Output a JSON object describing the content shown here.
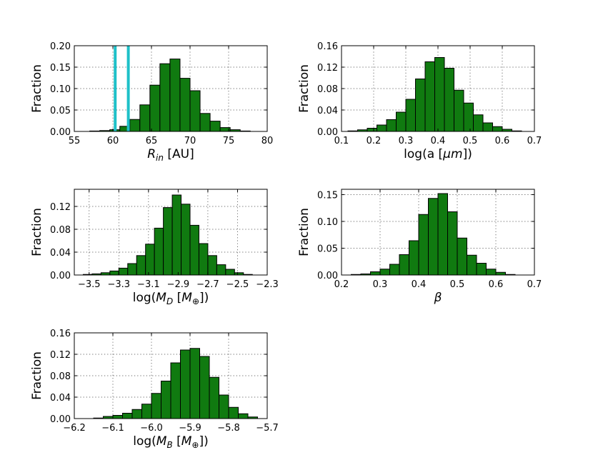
{
  "chart_data": [
    {
      "id": "rin",
      "type": "bar",
      "ylabel": "Fraction",
      "xlabel_parts": [
        {
          "t": "R",
          "it": true
        },
        {
          "t": "in",
          "it": true,
          "sub": true
        },
        {
          "t": " [AU]"
        }
      ],
      "xlim": [
        55,
        80
      ],
      "ylim": [
        0,
        0.2
      ],
      "xticks": [
        55,
        60,
        65,
        70,
        75,
        80
      ],
      "xtick_labels": [
        "55",
        "60",
        "65",
        "70",
        "75",
        "80"
      ],
      "yticks": [
        0,
        0.05,
        0.1,
        0.15,
        0.2
      ],
      "ytick_labels": [
        "0.00",
        "0.05",
        "0.10",
        "0.15",
        "0.20"
      ],
      "bin_edges": [
        57,
        58.3,
        59.6,
        60.9,
        62.2,
        63.5,
        64.8,
        66.1,
        67.4,
        68.7,
        70.0,
        71.3,
        72.6,
        73.9,
        75.2,
        76.5,
        77.8
      ],
      "values": [
        0.001,
        0.002,
        0.004,
        0.012,
        0.028,
        0.062,
        0.108,
        0.158,
        0.169,
        0.124,
        0.095,
        0.042,
        0.024,
        0.009,
        0.004,
        0.001
      ],
      "vlines": [
        60.3,
        62.0
      ]
    },
    {
      "id": "loga",
      "type": "bar",
      "ylabel": "Fraction",
      "xlabel_parts": [
        {
          "t": "log(a ["
        },
        {
          "t": "μm",
          "it": true
        },
        {
          "t": "])"
        }
      ],
      "xlim": [
        0.1,
        0.7
      ],
      "ylim": [
        0,
        0.16
      ],
      "xticks": [
        0.1,
        0.2,
        0.3,
        0.4,
        0.5,
        0.6,
        0.7
      ],
      "xtick_labels": [
        "0.1",
        "0.2",
        "0.3",
        "0.4",
        "0.5",
        "0.6",
        "0.7"
      ],
      "yticks": [
        0,
        0.04,
        0.08,
        0.12,
        0.16
      ],
      "ytick_labels": [
        "0.00",
        "0.04",
        "0.08",
        "0.12",
        "0.16"
      ],
      "bin_edges": [
        0.12,
        0.15,
        0.18,
        0.21,
        0.24,
        0.27,
        0.3,
        0.33,
        0.36,
        0.39,
        0.42,
        0.45,
        0.48,
        0.51,
        0.54,
        0.57,
        0.6,
        0.63,
        0.66
      ],
      "values": [
        0.001,
        0.003,
        0.006,
        0.012,
        0.022,
        0.036,
        0.06,
        0.098,
        0.13,
        0.138,
        0.118,
        0.077,
        0.053,
        0.031,
        0.016,
        0.009,
        0.004,
        0.001
      ]
    },
    {
      "id": "md",
      "type": "bar",
      "ylabel": "Fraction",
      "xlabel_parts": [
        {
          "t": "log("
        },
        {
          "t": "M",
          "it": true
        },
        {
          "t": "D",
          "it": true,
          "sub": true
        },
        {
          "t": "  ["
        },
        {
          "t": "M",
          "it": true
        },
        {
          "t": "⊕",
          "sub": true
        },
        {
          "t": "])"
        }
      ],
      "xlim": [
        -3.6,
        -2.3
      ],
      "ylim": [
        0,
        0.15
      ],
      "xticks": [
        -3.5,
        -3.3,
        -3.1,
        -2.9,
        -2.7,
        -2.5,
        -2.3
      ],
      "xtick_labels": [
        "−3.5",
        "−3.3",
        "−3.1",
        "−2.9",
        "−2.7",
        "−2.5",
        "−2.3"
      ],
      "yticks": [
        0,
        0.04,
        0.08,
        0.12
      ],
      "ytick_labels": [
        "0.00",
        "0.04",
        "0.08",
        "0.12"
      ],
      "bin_edges": [
        -3.54,
        -3.48,
        -3.42,
        -3.36,
        -3.3,
        -3.24,
        -3.18,
        -3.12,
        -3.06,
        -3.0,
        -2.94,
        -2.88,
        -2.82,
        -2.76,
        -2.7,
        -2.64,
        -2.58,
        -2.52,
        -2.46,
        -2.4
      ],
      "values": [
        0.001,
        0.002,
        0.004,
        0.007,
        0.012,
        0.02,
        0.034,
        0.054,
        0.082,
        0.118,
        0.14,
        0.124,
        0.087,
        0.055,
        0.034,
        0.018,
        0.01,
        0.004,
        0.001
      ]
    },
    {
      "id": "beta",
      "type": "bar",
      "ylabel": "Fraction",
      "xlabel_parts": [
        {
          "t": "β",
          "it": true
        }
      ],
      "xlim": [
        0.2,
        0.7
      ],
      "ylim": [
        0,
        0.16
      ],
      "xticks": [
        0.2,
        0.3,
        0.4,
        0.5,
        0.6,
        0.7
      ],
      "xtick_labels": [
        "0.2",
        "0.3",
        "0.4",
        "0.5",
        "0.6",
        "0.7"
      ],
      "yticks": [
        0,
        0.05,
        0.1,
        0.15
      ],
      "ytick_labels": [
        "0.00",
        "0.05",
        "0.10",
        "0.15"
      ],
      "bin_edges": [
        0.225,
        0.25,
        0.275,
        0.3,
        0.325,
        0.35,
        0.375,
        0.4,
        0.425,
        0.45,
        0.475,
        0.5,
        0.525,
        0.55,
        0.575,
        0.6,
        0.625,
        0.65
      ],
      "values": [
        0.001,
        0.002,
        0.006,
        0.011,
        0.02,
        0.038,
        0.064,
        0.113,
        0.143,
        0.152,
        0.118,
        0.069,
        0.037,
        0.022,
        0.011,
        0.005,
        0.001
      ]
    },
    {
      "id": "mb",
      "type": "bar",
      "ylabel": "Fraction",
      "xlabel_parts": [
        {
          "t": "log("
        },
        {
          "t": "M",
          "it": true
        },
        {
          "t": "B",
          "it": true,
          "sub": true
        },
        {
          "t": "  ["
        },
        {
          "t": "M",
          "it": true
        },
        {
          "t": "⊕",
          "sub": true
        },
        {
          "t": "])"
        }
      ],
      "xlim": [
        -6.2,
        -5.7
      ],
      "ylim": [
        0,
        0.16
      ],
      "xticks": [
        -6.2,
        -6.1,
        -6.0,
        -5.9,
        -5.8,
        -5.7
      ],
      "xtick_labels": [
        "−6.2",
        "−6.1",
        "−6.0",
        "−5.9",
        "−5.8",
        "−5.7"
      ],
      "yticks": [
        0,
        0.04,
        0.08,
        0.12,
        0.16
      ],
      "ytick_labels": [
        "0.00",
        "0.04",
        "0.08",
        "0.12",
        "0.16"
      ],
      "bin_edges": [
        -6.15,
        -6.125,
        -6.1,
        -6.075,
        -6.05,
        -6.025,
        -6.0,
        -5.975,
        -5.95,
        -5.925,
        -5.9,
        -5.875,
        -5.85,
        -5.825,
        -5.8,
        -5.775,
        -5.75,
        -5.725
      ],
      "values": [
        0.001,
        0.004,
        0.006,
        0.01,
        0.017,
        0.027,
        0.047,
        0.07,
        0.104,
        0.128,
        0.131,
        0.116,
        0.077,
        0.044,
        0.021,
        0.009,
        0.003
      ]
    }
  ]
}
